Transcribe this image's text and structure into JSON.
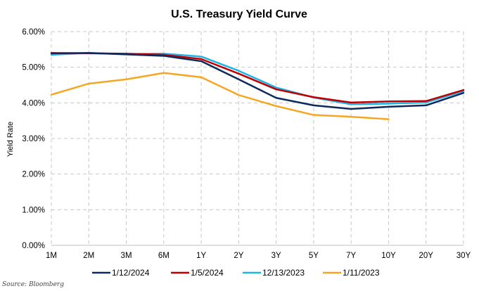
{
  "chart_data": {
    "type": "line",
    "title": "U.S. Treasury Yield Curve",
    "ylabel": "Yield Rate",
    "xlabel": "",
    "categories": [
      "1M",
      "2M",
      "3M",
      "6M",
      "1Y",
      "2Y",
      "3Y",
      "5Y",
      "7Y",
      "10Y",
      "20Y",
      "30Y"
    ],
    "ylim": [
      0,
      6
    ],
    "yticks": [
      "0.00%",
      "1.00%",
      "2.00%",
      "3.00%",
      "4.00%",
      "5.00%",
      "6.00%"
    ],
    "ytick_values": [
      0,
      1,
      2,
      3,
      4,
      5,
      6
    ],
    "grid": true,
    "legend_position": "bottom",
    "source": "Source: Bloomberg",
    "series": [
      {
        "name": "1/12/2024",
        "color": "#0d2a5c",
        "values": [
          5.39,
          5.4,
          5.36,
          5.32,
          5.17,
          4.66,
          4.14,
          3.93,
          3.83,
          3.89,
          3.93,
          4.28
        ]
      },
      {
        "name": "1/5/2024",
        "color": "#c00000",
        "values": [
          5.4,
          5.39,
          5.38,
          5.35,
          5.23,
          4.82,
          4.38,
          4.16,
          4.01,
          4.04,
          4.05,
          4.36
        ]
      },
      {
        "name": "12/13/2023",
        "color": "#1fb3e6",
        "values": [
          5.35,
          5.4,
          5.37,
          5.38,
          5.3,
          4.9,
          4.43,
          4.15,
          3.96,
          3.98,
          4.01,
          4.33
        ]
      },
      {
        "name": "1/11/2023",
        "color": "#f5a623",
        "values": [
          4.23,
          4.54,
          4.66,
          4.84,
          4.72,
          4.22,
          3.91,
          3.66,
          3.61,
          3.54,
          null,
          null
        ]
      }
    ]
  }
}
